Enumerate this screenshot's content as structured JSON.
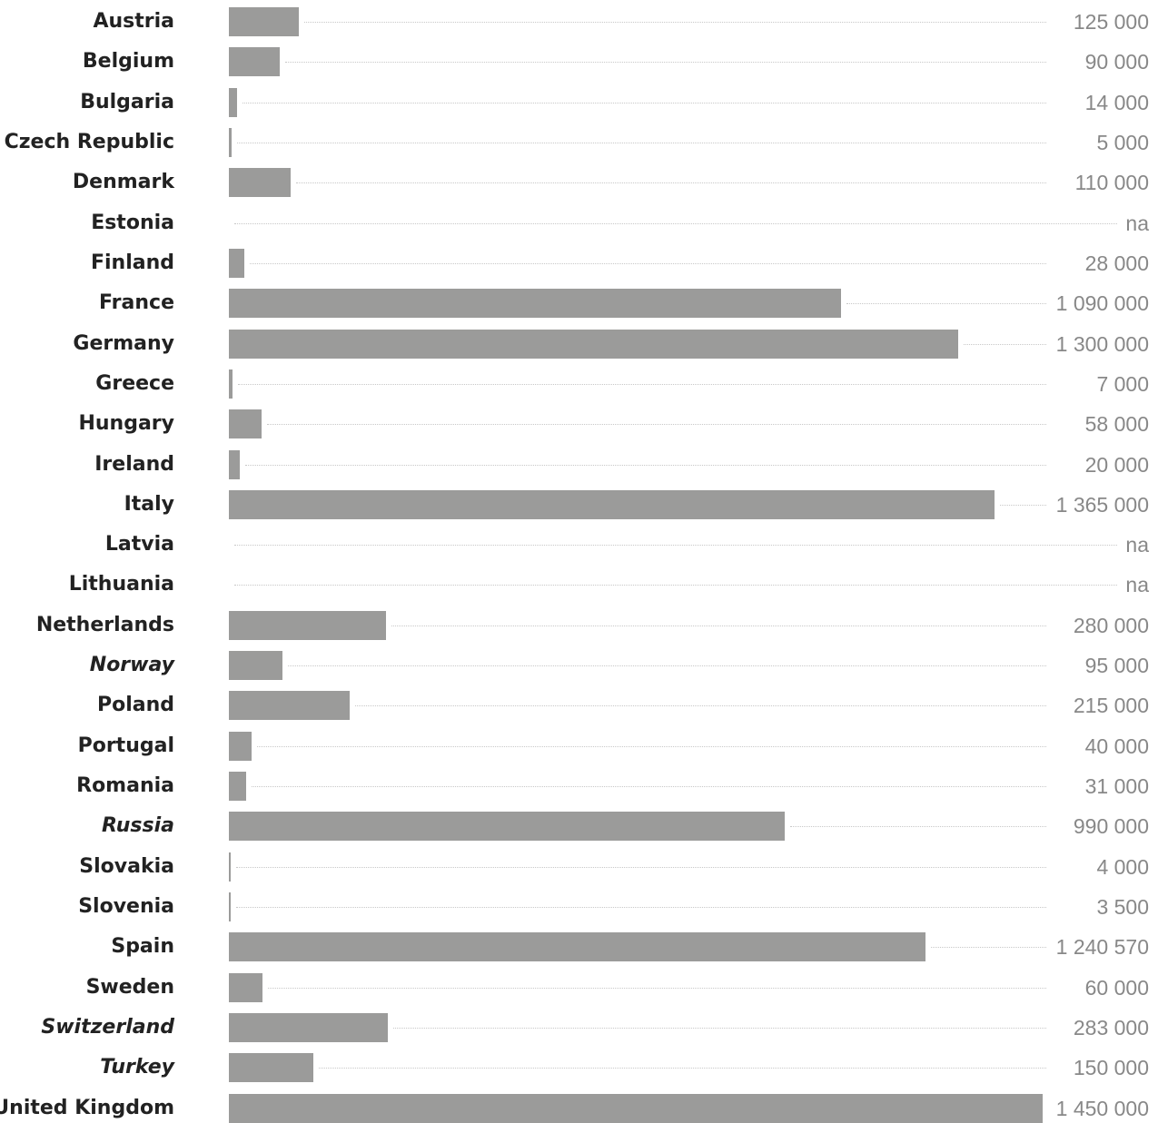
{
  "chart_data": {
    "type": "bar",
    "orientation": "horizontal",
    "bar_color": "#9b9b9a",
    "grid": false,
    "rows": [
      {
        "category": "Austria",
        "value": 125000,
        "label": "125 000",
        "italic": false
      },
      {
        "category": "Belgium",
        "value": 90000,
        "label": "90 000",
        "italic": false
      },
      {
        "category": "Bulgaria",
        "value": 14000,
        "label": "14 000",
        "italic": false
      },
      {
        "category": "Czech Republic",
        "value": 5000,
        "label": "5 000",
        "italic": false
      },
      {
        "category": "Denmark",
        "value": 110000,
        "label": "110 000",
        "italic": false
      },
      {
        "category": "Estonia",
        "value": null,
        "label": "na",
        "italic": false
      },
      {
        "category": "Finland",
        "value": 28000,
        "label": "28 000",
        "italic": false
      },
      {
        "category": "France",
        "value": 1090000,
        "label": "1 090 000",
        "italic": false
      },
      {
        "category": "Germany",
        "value": 1300000,
        "label": "1 300 000",
        "italic": false
      },
      {
        "category": "Greece",
        "value": 7000,
        "label": "7 000",
        "italic": false
      },
      {
        "category": "Hungary",
        "value": 58000,
        "label": "58 000",
        "italic": false
      },
      {
        "category": "Ireland",
        "value": 20000,
        "label": "20 000",
        "italic": false
      },
      {
        "category": "Italy",
        "value": 1365000,
        "label": "1 365 000",
        "italic": false
      },
      {
        "category": "Latvia",
        "value": null,
        "label": "na",
        "italic": false
      },
      {
        "category": "Lithuania",
        "value": null,
        "label": "na",
        "italic": false
      },
      {
        "category": "Netherlands",
        "value": 280000,
        "label": "280 000",
        "italic": false
      },
      {
        "category": "Norway",
        "value": 95000,
        "label": "95 000",
        "italic": true
      },
      {
        "category": "Poland",
        "value": 215000,
        "label": "215 000",
        "italic": false
      },
      {
        "category": "Portugal",
        "value": 40000,
        "label": "40 000",
        "italic": false
      },
      {
        "category": "Romania",
        "value": 31000,
        "label": "31 000",
        "italic": false
      },
      {
        "category": "Russia",
        "value": 990000,
        "label": "990 000",
        "italic": true
      },
      {
        "category": "Slovakia",
        "value": 4000,
        "label": "4 000",
        "italic": false
      },
      {
        "category": "Slovenia",
        "value": 3500,
        "label": "3 500",
        "italic": false
      },
      {
        "category": "Spain",
        "value": 1240570,
        "label": "1 240 570",
        "italic": false
      },
      {
        "category": "Sweden",
        "value": 60000,
        "label": "60 000",
        "italic": false
      },
      {
        "category": "Switzerland",
        "value": 283000,
        "label": "283 000",
        "italic": true
      },
      {
        "category": "Turkey",
        "value": 150000,
        "label": "150 000",
        "italic": true
      },
      {
        "category": "United Kingdom",
        "value": 1450000,
        "label": "1 450 000",
        "italic": false
      }
    ]
  }
}
